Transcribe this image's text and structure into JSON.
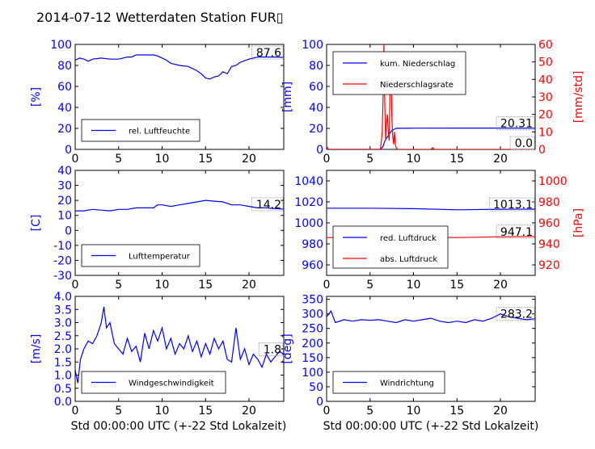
{
  "title": "2014-07-12 Wetterdaten Station FUR▯",
  "xlabel": "Std 00:00:00 UTC (+-22 Std Lokalzeit)",
  "colors": {
    "left_axis": "#0000ff",
    "right_axis": "#ff0000",
    "series_blue": "#0000ff",
    "series_red": "#ff0000"
  },
  "chart_data": [
    {
      "id": "humidity",
      "type": "line",
      "ylabel": "[%]",
      "ylim": [
        0,
        100
      ],
      "yticks": [
        0,
        20,
        40,
        60,
        80,
        100
      ],
      "xlim": [
        0,
        24
      ],
      "xticks": [
        0,
        5,
        10,
        15,
        20
      ],
      "last_value_label": "87.6",
      "series": [
        {
          "name": "rel. Luftfeuchte",
          "color": "#0000ff",
          "x": [
            0,
            0.5,
            1,
            1.5,
            2,
            3,
            4,
            5,
            5.5,
            6,
            6.5,
            7,
            8,
            9,
            9.5,
            10,
            10.5,
            11,
            12,
            13,
            14,
            14.5,
            15,
            15.5,
            16,
            16.5,
            17,
            17.5,
            18,
            18.5,
            19,
            20,
            21,
            22,
            23,
            24
          ],
          "y": [
            85,
            87,
            86,
            84,
            86,
            87,
            86,
            86,
            87,
            88,
            88,
            90,
            90,
            90,
            89,
            87,
            85,
            82,
            80,
            79,
            75,
            72,
            68,
            67,
            69,
            70,
            74,
            72,
            79,
            80,
            83,
            86,
            88,
            88,
            88,
            87.6
          ]
        }
      ]
    },
    {
      "id": "precipitation",
      "type": "line",
      "ylabel": "[mm]",
      "ylim": [
        0,
        100
      ],
      "yticks": [
        0,
        20,
        40,
        60,
        80,
        100
      ],
      "ylabel_right": "[mm/std]",
      "ylim_right": [
        0,
        60
      ],
      "yticks_right": [
        0,
        10,
        20,
        30,
        40,
        50,
        60
      ],
      "xlim": [
        0,
        24
      ],
      "xticks": [
        0,
        5,
        10,
        15,
        20
      ],
      "last_value_label": "20.31",
      "last_value_label_right": "0.0",
      "series": [
        {
          "name": "kum. Niederschlag",
          "color": "#0000ff",
          "axis": "left",
          "x": [
            0,
            6.2,
            6.5,
            6.7,
            7,
            7.5,
            8,
            10,
            15,
            20,
            24
          ],
          "y": [
            0,
            0,
            3,
            8,
            12,
            18,
            20.1,
            20.2,
            20.3,
            20.31,
            20.31
          ]
        },
        {
          "name": "Niederschlagsrate",
          "color": "#ff0000",
          "axis": "right",
          "x": [
            0,
            0.1,
            0.2,
            6.2,
            6.4,
            6.5,
            6.6,
            6.7,
            6.8,
            6.9,
            7.0,
            7.1,
            7.2,
            7.3,
            7.4,
            7.5,
            7.6,
            7.7,
            7.8,
            7.9,
            8.0,
            8.2,
            8.5,
            12.0,
            12.2,
            12.4,
            24
          ],
          "y": [
            0,
            1,
            0,
            0,
            10,
            30,
            60,
            25,
            5,
            15,
            20,
            10,
            5,
            40,
            48,
            20,
            8,
            3,
            10,
            3,
            1,
            0,
            0,
            0,
            1,
            0,
            0
          ]
        }
      ]
    },
    {
      "id": "temperature",
      "type": "line",
      "ylabel": "[C]",
      "ylim": [
        -30,
        40
      ],
      "yticks": [
        -30,
        -20,
        -10,
        0,
        10,
        20,
        30,
        40
      ],
      "xlim": [
        0,
        24
      ],
      "xticks": [
        0,
        5,
        10,
        15,
        20
      ],
      "last_value_label": "14.2",
      "series": [
        {
          "name": "Lufttemperatur",
          "color": "#0000ff",
          "x": [
            0,
            1,
            2,
            3,
            4,
            5,
            6,
            7,
            8,
            9,
            9.5,
            10,
            11,
            12,
            13,
            14,
            15,
            16,
            17,
            18,
            19,
            20,
            21,
            22,
            23,
            24
          ],
          "y": [
            13,
            13,
            14,
            13.5,
            13,
            14,
            14,
            15,
            15,
            15,
            17,
            17,
            16,
            17,
            18,
            19,
            20,
            19.5,
            19,
            17,
            17,
            16,
            15,
            15,
            14.5,
            14.2
          ]
        }
      ]
    },
    {
      "id": "pressure",
      "type": "line",
      "ylim": [
        950,
        1050
      ],
      "yticks": [
        960,
        980,
        1000,
        1020,
        1040
      ],
      "ylabel_right": "[hPa]",
      "ylim_right": [
        910,
        1010
      ],
      "yticks_right": [
        920,
        940,
        960,
        980,
        1000
      ],
      "xlim": [
        0,
        24
      ],
      "xticks": [
        0,
        5,
        10,
        15,
        20
      ],
      "last_value_label": "1013.1",
      "last_value_label_right": "947.1",
      "series": [
        {
          "name": "red. Luftdruck",
          "color": "#0000ff",
          "axis": "left",
          "x": [
            0,
            5,
            10,
            15,
            20,
            24
          ],
          "y": [
            1014,
            1014,
            1013.5,
            1012.5,
            1013,
            1013.1
          ]
        },
        {
          "name": "abs. Luftdruck",
          "color": "#ff0000",
          "axis": "right",
          "x": [
            0,
            5,
            10,
            15,
            20,
            24
          ],
          "y": [
            946,
            946,
            946.5,
            946,
            946.8,
            947.1
          ]
        }
      ]
    },
    {
      "id": "windspeed",
      "type": "line",
      "ylabel": "[m/s]",
      "ylim": [
        0,
        4
      ],
      "yticks": [
        0.0,
        0.5,
        1.0,
        1.5,
        2.0,
        2.5,
        3.0,
        3.5,
        4.0
      ],
      "xlim": [
        0,
        24
      ],
      "xticks": [
        0,
        5,
        10,
        15,
        20
      ],
      "last_value_label": "1.8",
      "series": [
        {
          "name": "Windgeschwindigkeit",
          "color": "#0000ff",
          "x": [
            0,
            0.3,
            0.6,
            1,
            1.5,
            2,
            2.5,
            3,
            3.3,
            3.6,
            4,
            4.5,
            5,
            5.5,
            6,
            6.5,
            7,
            7.5,
            8,
            8.5,
            9,
            9.5,
            10,
            10.5,
            11,
            11.5,
            12,
            12.5,
            13,
            13.5,
            14,
            14.5,
            15,
            15.5,
            16,
            16.5,
            17,
            17.5,
            18,
            18.5,
            19,
            19.5,
            20,
            20.5,
            21,
            21.5,
            22,
            22.5,
            23,
            23.5,
            24
          ],
          "y": [
            1.2,
            0.7,
            1.6,
            2.0,
            2.3,
            2.2,
            2.5,
            3.0,
            3.6,
            2.8,
            3.0,
            2.2,
            2.0,
            1.8,
            2.4,
            1.9,
            2.1,
            1.5,
            2.6,
            2.0,
            2.7,
            2.3,
            2.8,
            2.0,
            2.4,
            1.8,
            2.2,
            2.0,
            2.5,
            1.9,
            2.3,
            1.7,
            2.2,
            1.8,
            2.4,
            2.0,
            2.3,
            1.6,
            1.5,
            2.8,
            1.6,
            2.0,
            1.4,
            1.8,
            1.6,
            1.3,
            1.8,
            1.5,
            1.7,
            1.9,
            1.8
          ]
        }
      ]
    },
    {
      "id": "winddirection",
      "type": "line",
      "ylabel": "[deg]",
      "ylim": [
        0,
        360
      ],
      "yticks": [
        0,
        50,
        100,
        150,
        200,
        250,
        300,
        350
      ],
      "xlim": [
        0,
        24
      ],
      "xticks": [
        0,
        5,
        10,
        15,
        20
      ],
      "last_value_label": "283.2",
      "series": [
        {
          "name": "Windrichtung",
          "color": "#0000ff",
          "x": [
            0,
            0.5,
            1,
            2,
            3,
            4,
            5,
            6,
            7,
            8,
            9,
            10,
            11,
            12,
            13,
            14,
            15,
            16,
            17,
            18,
            19,
            20,
            21,
            22,
            23,
            24
          ],
          "y": [
            290,
            310,
            270,
            280,
            275,
            280,
            278,
            280,
            275,
            270,
            280,
            275,
            280,
            285,
            275,
            270,
            275,
            270,
            280,
            275,
            285,
            300,
            290,
            285,
            280,
            283.2
          ]
        }
      ]
    }
  ]
}
